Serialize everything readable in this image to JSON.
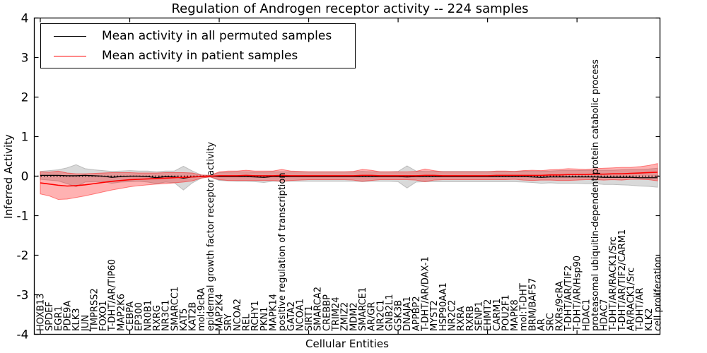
{
  "title": "Regulation of Androgen receptor activity -- 224 samples",
  "chart_data": {
    "type": "line",
    "title": "Regulation of Androgen receptor activity -- 224 samples",
    "xlabel": "Cellular Entities",
    "ylabel": "Inferred Activity",
    "ylim": [
      -4,
      4
    ],
    "ytick_labels": [
      "4",
      "3",
      "2",
      "1",
      "0",
      "-1",
      "-2",
      "-3",
      "-4"
    ],
    "ytick_values": [
      4,
      3,
      2,
      1,
      0,
      -1,
      -2,
      -3,
      -4
    ],
    "grid": false,
    "legend_position": "upper left",
    "zero_reference_line": 0,
    "legend": [
      {
        "label": "Mean activity in all permuted samples",
        "color": "#000000"
      },
      {
        "label": "Mean activity in patient samples",
        "color": "#ff0000"
      }
    ],
    "colors": {
      "permuted_line": "#000000",
      "patient_line": "#ff0000",
      "permuted_band": "#777777",
      "patient_band": "#ff0000",
      "frame": "#000000"
    },
    "categories": [
      "HOXB13",
      "SPDEF",
      "EGR1",
      "PDE9A",
      "KLK3",
      "JUN",
      "TMPRSS2",
      "FOXO1",
      "T-DHT/AR/TIP60",
      "MAP2K6",
      "CEBPA",
      "EP300",
      "NR0B1",
      "RXRG",
      "NR3C1",
      "SMARCC1",
      "KAT5",
      "KAT2B",
      "mol:9cRA",
      "epidermal growth factor receptor activity",
      "MAP2K4",
      "SRY",
      "NCOA2",
      "REL",
      "RCHY1",
      "PKN1",
      "MAPK14",
      "positive regulation of transcription",
      "GATA2",
      "NCOA1",
      "SIRT1",
      "SMARCA2",
      "CREBBP",
      "TRIM24",
      "ZMIZ2",
      "MDM2",
      "SMARCE1",
      "AR/GR",
      "NR2C1",
      "GNB2L1",
      "GSK3B",
      "DNAJA1",
      "APPBP2",
      "T-DHT/AR/DAX-1",
      "MYST2",
      "HSP90AA1",
      "NR2C2",
      "RXRA",
      "RXRB",
      "SENP1",
      "EHMT2",
      "CARM1",
      "POU2F1",
      "MAPK8",
      "mol:T-DHT",
      "BRM/BAF57",
      "AR",
      "SRC",
      "RXRs/9cRA",
      "T-DHT/AR/TIF2",
      "T-DHT/AR/Hsp90",
      "HDAC1",
      "proteasomal ubiquitin-dependent protein catabolic process",
      "HDAC7",
      "T-DHT/AR/RACK1/Src",
      "T-DHT/AR/TIF2/CARM1",
      "AR/RACK1/Src",
      "T-DHT/AR",
      "KLK2",
      "cell proliferation"
    ],
    "series": [
      {
        "name": "Mean activity in all permuted samples",
        "values": [
          0.02,
          0.02,
          0.02,
          0.01,
          0.01,
          0.02,
          0.01,
          0.0,
          -0.03,
          -0.01,
          0.0,
          0.0,
          -0.01,
          -0.04,
          -0.01,
          -0.02,
          -0.05,
          -0.02,
          -0.01,
          0.0,
          -0.01,
          -0.01,
          -0.01,
          -0.01,
          -0.02,
          -0.03,
          -0.01,
          -0.01,
          -0.01,
          -0.01,
          -0.01,
          -0.01,
          -0.01,
          -0.01,
          -0.01,
          -0.01,
          -0.01,
          -0.01,
          -0.01,
          -0.01,
          -0.01,
          -0.02,
          -0.01,
          -0.01,
          -0.01,
          -0.01,
          -0.01,
          -0.01,
          -0.01,
          -0.01,
          -0.01,
          -0.01,
          -0.01,
          -0.01,
          -0.01,
          -0.02,
          -0.03,
          -0.02,
          -0.02,
          -0.02,
          -0.02,
          -0.02,
          -0.02,
          -0.03,
          -0.03,
          -0.03,
          -0.03,
          -0.04,
          -0.04,
          -0.04
        ],
        "band_halfwidth": [
          0.1,
          0.12,
          0.14,
          0.2,
          0.28,
          0.17,
          0.15,
          0.14,
          0.15,
          0.14,
          0.14,
          0.13,
          0.14,
          0.15,
          0.14,
          0.15,
          0.3,
          0.15,
          0.04,
          0.02,
          0.1,
          0.11,
          0.12,
          0.12,
          0.12,
          0.13,
          0.12,
          0.12,
          0.12,
          0.12,
          0.12,
          0.12,
          0.12,
          0.12,
          0.12,
          0.12,
          0.13,
          0.12,
          0.12,
          0.12,
          0.13,
          0.28,
          0.14,
          0.13,
          0.13,
          0.13,
          0.13,
          0.13,
          0.13,
          0.13,
          0.13,
          0.13,
          0.13,
          0.13,
          0.14,
          0.14,
          0.15,
          0.15,
          0.16,
          0.16,
          0.16,
          0.17,
          0.17,
          0.18,
          0.18,
          0.19,
          0.2,
          0.21,
          0.22,
          0.24
        ]
      },
      {
        "name": "Mean activity in patient samples",
        "values": [
          -0.17,
          -0.2,
          -0.23,
          -0.25,
          -0.24,
          -0.22,
          -0.19,
          -0.16,
          -0.13,
          -0.11,
          -0.09,
          -0.08,
          -0.07,
          -0.06,
          -0.05,
          -0.04,
          -0.03,
          -0.02,
          -0.01,
          0.0,
          0.01,
          0.01,
          0.01,
          0.02,
          0.01,
          0.01,
          0.01,
          0.02,
          0.01,
          0.01,
          0.01,
          0.01,
          0.01,
          0.01,
          0.01,
          0.01,
          0.02,
          0.02,
          0.01,
          0.01,
          0.01,
          0.01,
          0.01,
          0.02,
          0.02,
          0.01,
          0.01,
          0.01,
          0.01,
          0.01,
          0.01,
          0.02,
          0.02,
          0.02,
          0.02,
          0.02,
          0.02,
          0.03,
          0.03,
          0.04,
          0.04,
          0.04,
          0.05,
          0.05,
          0.06,
          0.06,
          0.07,
          0.08,
          0.09,
          0.1
        ],
        "band_halfwidth": [
          0.28,
          0.3,
          0.36,
          0.33,
          0.3,
          0.28,
          0.26,
          0.24,
          0.22,
          0.2,
          0.18,
          0.16,
          0.15,
          0.14,
          0.14,
          0.13,
          0.12,
          0.1,
          0.04,
          0.02,
          0.1,
          0.12,
          0.12,
          0.13,
          0.12,
          0.12,
          0.12,
          0.15,
          0.12,
          0.11,
          0.1,
          0.1,
          0.1,
          0.1,
          0.1,
          0.11,
          0.15,
          0.13,
          0.1,
          0.1,
          0.1,
          0.1,
          0.11,
          0.16,
          0.12,
          0.1,
          0.1,
          0.1,
          0.1,
          0.1,
          0.1,
          0.11,
          0.11,
          0.1,
          0.12,
          0.13,
          0.12,
          0.13,
          0.14,
          0.15,
          0.14,
          0.13,
          0.14,
          0.15,
          0.15,
          0.16,
          0.15,
          0.16,
          0.18,
          0.22
        ]
      }
    ]
  }
}
